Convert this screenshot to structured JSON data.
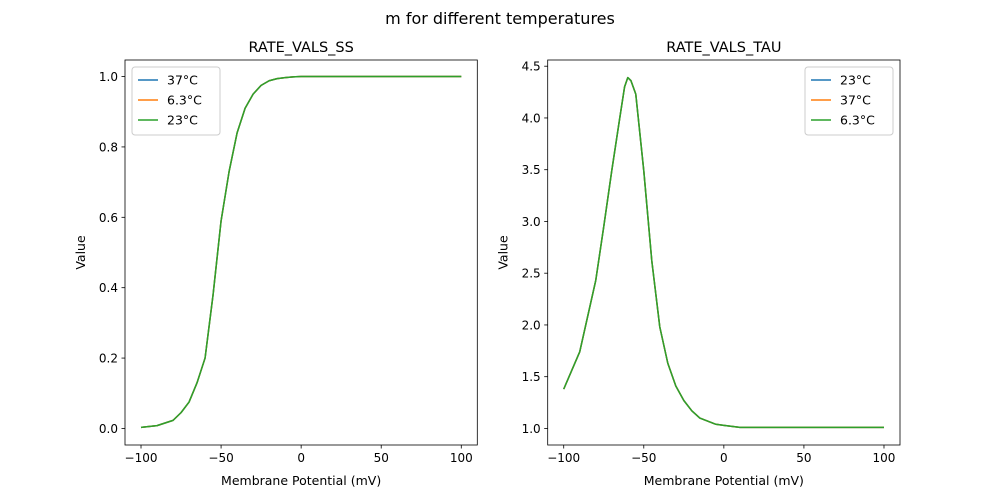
{
  "suptitle": "m for different temperatures",
  "colors": {
    "blue": "#1f77b4",
    "orange": "#ff7f0e",
    "green": "#2ca02c"
  },
  "chart_data": [
    {
      "type": "line",
      "title": "RATE_VALS_SS",
      "xlabel": "Membrane Potential (mV)",
      "ylabel": "Value",
      "xlim": [
        -110,
        110
      ],
      "ylim": [
        -0.047,
        1.047
      ],
      "xticks": [
        -100,
        -50,
        0,
        50,
        100
      ],
      "xtick_labels": [
        "−100",
        "−50",
        "0",
        "50",
        "100"
      ],
      "yticks": [
        0,
        0.2,
        0.4,
        0.6,
        0.8,
        1.0
      ],
      "ytick_labels": [
        "0.0",
        "0.2",
        "0.4",
        "0.6",
        "0.8",
        "1.0"
      ],
      "grid": false,
      "legend_position": "upper left",
      "x": [
        -100,
        -90,
        -80,
        -75,
        -70,
        -65,
        -60,
        -55,
        -50,
        -45,
        -40,
        -35,
        -30,
        -25,
        -20,
        -15,
        -10,
        -5,
        0,
        10,
        20,
        50,
        100
      ],
      "series": [
        {
          "name": "37°C",
          "color": "#1f77b4",
          "values": [
            0.003,
            0.008,
            0.023,
            0.045,
            0.075,
            0.13,
            0.2,
            0.38,
            0.59,
            0.73,
            0.84,
            0.91,
            0.95,
            0.975,
            0.988,
            0.994,
            0.997,
            0.999,
            1.0,
            1.0,
            1.0,
            1.0,
            1.0
          ]
        },
        {
          "name": "6.3°C",
          "color": "#ff7f0e",
          "values": [
            0.003,
            0.008,
            0.023,
            0.045,
            0.075,
            0.13,
            0.2,
            0.38,
            0.59,
            0.73,
            0.84,
            0.91,
            0.95,
            0.975,
            0.988,
            0.994,
            0.997,
            0.999,
            1.0,
            1.0,
            1.0,
            1.0,
            1.0
          ]
        },
        {
          "name": "23°C",
          "color": "#2ca02c",
          "values": [
            0.003,
            0.008,
            0.023,
            0.045,
            0.075,
            0.13,
            0.2,
            0.38,
            0.59,
            0.73,
            0.84,
            0.91,
            0.95,
            0.975,
            0.988,
            0.994,
            0.997,
            0.999,
            1.0,
            1.0,
            1.0,
            1.0,
            1.0
          ]
        }
      ]
    },
    {
      "type": "line",
      "title": "RATE_VALS_TAU",
      "xlabel": "Membrane Potential (mV)",
      "ylabel": "Value",
      "xlim": [
        -110,
        110
      ],
      "ylim": [
        0.84,
        4.56
      ],
      "xticks": [
        -100,
        -50,
        0,
        50,
        100
      ],
      "xtick_labels": [
        "−100",
        "−50",
        "0",
        "50",
        "100"
      ],
      "yticks": [
        1.0,
        1.5,
        2.0,
        2.5,
        3.0,
        3.5,
        4.0,
        4.5
      ],
      "ytick_labels": [
        "1.0",
        "1.5",
        "2.0",
        "2.5",
        "3.0",
        "3.5",
        "4.0",
        "4.5"
      ],
      "grid": false,
      "legend_position": "upper right",
      "x": [
        -100,
        -90,
        -80,
        -75,
        -70,
        -65,
        -62,
        -60,
        -58,
        -55,
        -50,
        -45,
        -40,
        -35,
        -30,
        -25,
        -20,
        -15,
        -10,
        -5,
        0,
        5,
        10,
        50,
        100
      ],
      "series": [
        {
          "name": "23°C",
          "color": "#1f77b4",
          "values": [
            1.38,
            1.74,
            2.43,
            2.95,
            3.49,
            4.0,
            4.3,
            4.39,
            4.36,
            4.23,
            3.49,
            2.62,
            1.98,
            1.63,
            1.41,
            1.27,
            1.17,
            1.1,
            1.07,
            1.04,
            1.03,
            1.02,
            1.01,
            1.01,
            1.01
          ]
        },
        {
          "name": "37°C",
          "color": "#ff7f0e",
          "values": [
            1.38,
            1.74,
            2.43,
            2.95,
            3.49,
            4.0,
            4.3,
            4.39,
            4.36,
            4.23,
            3.49,
            2.62,
            1.98,
            1.63,
            1.41,
            1.27,
            1.17,
            1.1,
            1.07,
            1.04,
            1.03,
            1.02,
            1.01,
            1.01,
            1.01
          ]
        },
        {
          "name": "6.3°C",
          "color": "#2ca02c",
          "values": [
            1.38,
            1.74,
            2.43,
            2.95,
            3.49,
            4.0,
            4.3,
            4.39,
            4.36,
            4.23,
            3.49,
            2.62,
            1.98,
            1.63,
            1.41,
            1.27,
            1.17,
            1.1,
            1.07,
            1.04,
            1.03,
            1.02,
            1.01,
            1.01,
            1.01
          ]
        }
      ]
    }
  ]
}
